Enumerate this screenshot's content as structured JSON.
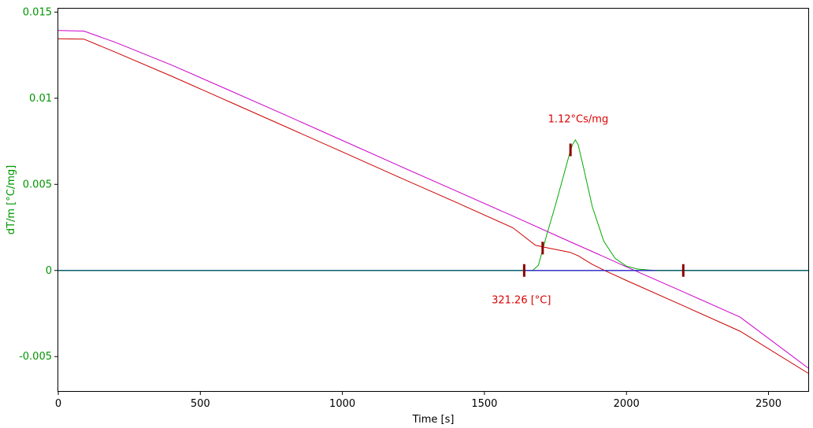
{
  "chart_data": {
    "type": "line",
    "title": "",
    "xlabel": "Time [s]",
    "ylabel": "dT/m  [°C/mg]",
    "xlim": [
      0,
      2640
    ],
    "ylim": [
      -0.007,
      0.0152
    ],
    "x_ticks": [
      0,
      500,
      1000,
      1500,
      2000,
      2500
    ],
    "x_tick_labels": [
      "0",
      "500",
      "1000",
      "1500",
      "2000",
      "2500"
    ],
    "y_ticks": [
      0.015,
      0.01,
      0.005,
      0,
      -0.005
    ],
    "y_tick_labels": [
      "0.015",
      "0.01",
      "0.005",
      "0",
      "-0.005"
    ],
    "grid": false,
    "legend": "none",
    "colors": {
      "axis_label": "#009600",
      "annotation": "#dd0000",
      "marker": "#8b0000",
      "zero_line_blue": "#2020c0",
      "zero_line_teal": "#006060"
    },
    "series": [
      {
        "color": "#cc00cc",
        "x": [
          0,
          90,
          200,
          400,
          600,
          800,
          1000,
          1200,
          1400,
          1600,
          1800,
          1900,
          2000,
          2200,
          2400,
          2640
        ],
        "y": [
          0.01393,
          0.0139,
          0.01325,
          0.01192,
          0.01047,
          0.00902,
          0.00755,
          0.00608,
          0.00462,
          0.00316,
          0.00168,
          0.00095,
          0.00021,
          -0.00124,
          -0.00271,
          -0.00567
        ]
      },
      {
        "color": "#cc0000",
        "x": [
          0,
          90,
          200,
          400,
          600,
          800,
          1000,
          1200,
          1400,
          1600,
          1680,
          1720,
          1800,
          1830,
          1880,
          1920,
          2000,
          2200,
          2400,
          2640
        ],
        "y": [
          0.01345,
          0.01343,
          0.01268,
          0.01127,
          0.00981,
          0.00835,
          0.00688,
          0.00541,
          0.00396,
          0.00248,
          0.00146,
          0.00132,
          0.00106,
          0.00085,
          0.00035,
          2e-05,
          -0.00058,
          -0.00205,
          -0.00353,
          -0.00597
        ]
      },
      {
        "color": "#00aa00",
        "x": [
          1640,
          1670,
          1690,
          1700,
          1720,
          1750,
          1780,
          1800,
          1810,
          1820,
          1830,
          1850,
          1880,
          1920,
          1960,
          2000,
          2040,
          2080,
          2100,
          2640
        ],
        "y": [
          0,
          0,
          0.0003,
          0.0009,
          0.0021,
          0.0038,
          0.0056,
          0.0068,
          0.0073,
          0.00758,
          0.0073,
          0.0059,
          0.0037,
          0.0017,
          0.0007,
          0.00025,
          8e-05,
          2e-05,
          0,
          0
        ]
      },
      {
        "color": "#2020c0",
        "x": [
          0,
          2640
        ],
        "y": [
          0,
          0
        ]
      },
      {
        "color": "#006060",
        "x": [
          0,
          1640
        ],
        "y": [
          0,
          0
        ]
      },
      {
        "color": "#006060",
        "x": [
          2100,
          2640
        ],
        "y": [
          0,
          0
        ]
      }
    ],
    "markers": [
      {
        "x": 1640,
        "y": 0
      },
      {
        "x": 1705,
        "y": 0.0013
      },
      {
        "x": 1803,
        "y": 0.007
      },
      {
        "x": 2200,
        "y": 0
      }
    ],
    "annotations": [
      {
        "text": "1.12°Cs/mg",
        "x": 1830,
        "y": 0.0086
      },
      {
        "text": "321.26 [°C]",
        "x": 1630,
        "y": -0.0019
      }
    ]
  }
}
